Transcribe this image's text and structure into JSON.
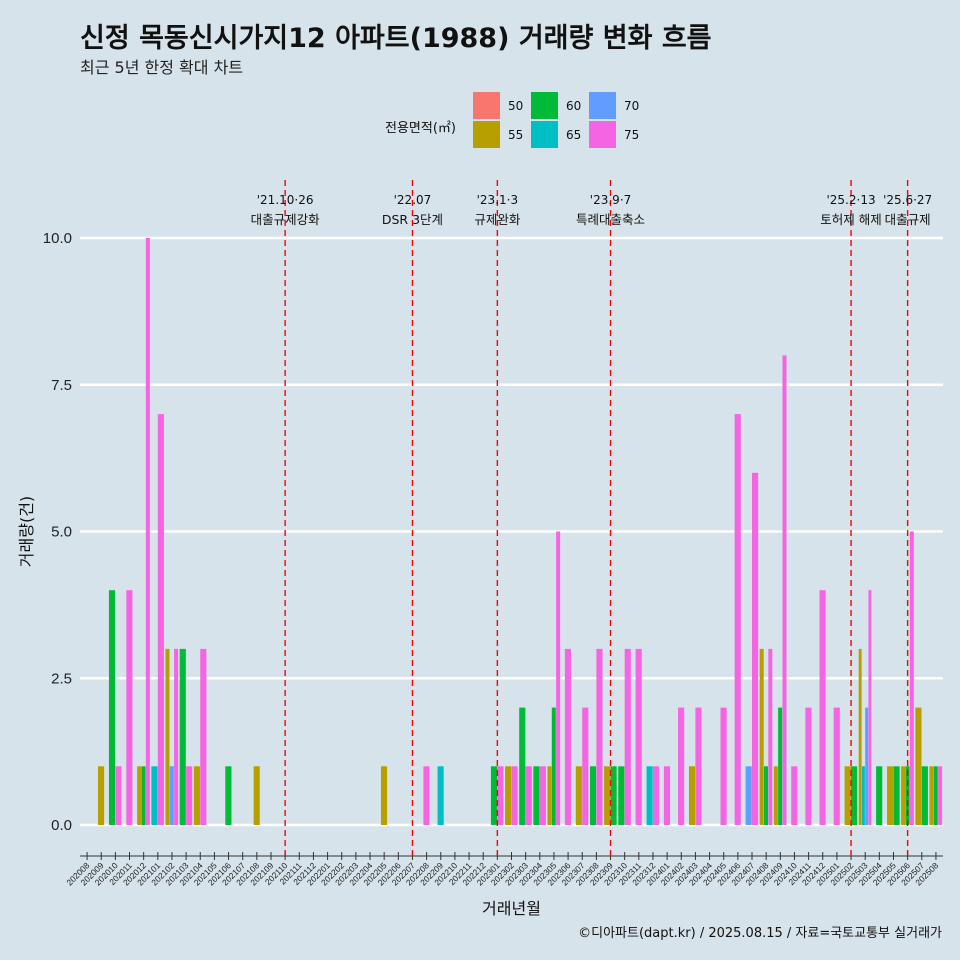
{
  "title": "신정 목동신시가지12 아파트(1988) 거래량 변화 흐름",
  "subtitle": "최근 5년 한정 확대 차트",
  "caption": "©디아파트(dapt.kr) / 2025.08.15 / 자료=국토교통부 실거래가",
  "colors": {
    "background": "#d6e3ea",
    "grid": "#ffffff",
    "event_line": "#ff0000",
    "area_50": "#f8766d",
    "area_55": "#b79f00",
    "area_60": "#00ba38",
    "area_65": "#00bfc4",
    "area_70": "#619cff",
    "area_75": "#f564e3"
  },
  "chart_data": {
    "type": "bar",
    "title": "신정 목동신시가지12 아파트(1988) 거래량 변화 흐름",
    "subtitle": "최근 5년 한정 확대 차트",
    "xlabel": "거래년월",
    "ylabel": "거래량(건)",
    "ylim": [
      0,
      10
    ],
    "yticks": [
      "0.0",
      "2.5",
      "5.0",
      "7.5",
      "10.0"
    ],
    "grid": true,
    "legend": {
      "title": "전용면적(㎡)",
      "placement": "top-center",
      "entries": [
        "50",
        "55",
        "60",
        "65",
        "70",
        "75"
      ]
    },
    "months": [
      "202008",
      "202009",
      "202010",
      "202011",
      "202012",
      "202101",
      "202102",
      "202103",
      "202104",
      "202105",
      "202106",
      "202107",
      "202108",
      "202109",
      "202110",
      "202111",
      "202112",
      "202201",
      "202202",
      "202203",
      "202204",
      "202205",
      "202206",
      "202207",
      "202208",
      "202209",
      "202210",
      "202211",
      "202212",
      "202301",
      "202302",
      "202303",
      "202304",
      "202305",
      "202306",
      "202307",
      "202308",
      "202309",
      "202310",
      "202311",
      "202312",
      "202401",
      "202402",
      "202403",
      "202404",
      "202405",
      "202406",
      "202407",
      "202408",
      "202409",
      "202410",
      "202411",
      "202412",
      "202501",
      "202502",
      "202503",
      "202504",
      "202505",
      "202506",
      "202507",
      "202508"
    ],
    "bars": [
      {
        "month": "202009",
        "series": [
          [
            "55",
            1
          ]
        ]
      },
      {
        "month": "202010",
        "series": [
          [
            "60",
            4
          ],
          [
            "75",
            1
          ]
        ]
      },
      {
        "month": "202011",
        "series": [
          [
            "75",
            4
          ]
        ]
      },
      {
        "month": "202012",
        "series": [
          [
            "55",
            1
          ],
          [
            "60",
            1
          ],
          [
            "75",
            10
          ]
        ]
      },
      {
        "month": "202101",
        "series": [
          [
            "65",
            1
          ],
          [
            "75",
            7
          ]
        ]
      },
      {
        "month": "202102",
        "series": [
          [
            "55",
            3
          ],
          [
            "70",
            1
          ],
          [
            "75",
            3
          ]
        ]
      },
      {
        "month": "202103",
        "series": [
          [
            "60",
            3
          ],
          [
            "75",
            1
          ]
        ]
      },
      {
        "month": "202104",
        "series": [
          [
            "55",
            1
          ],
          [
            "75",
            3
          ]
        ]
      },
      {
        "month": "202106",
        "series": [
          [
            "60",
            1
          ]
        ]
      },
      {
        "month": "202108",
        "series": [
          [
            "55",
            1
          ]
        ]
      },
      {
        "month": "202205",
        "series": [
          [
            "55",
            1
          ]
        ]
      },
      {
        "month": "202208",
        "series": [
          [
            "75",
            1
          ]
        ]
      },
      {
        "month": "202209",
        "series": [
          [
            "65",
            1
          ]
        ]
      },
      {
        "month": "202301",
        "series": [
          [
            "60",
            1
          ],
          [
            "75",
            1
          ]
        ]
      },
      {
        "month": "202302",
        "series": [
          [
            "55",
            1
          ],
          [
            "75",
            1
          ]
        ]
      },
      {
        "month": "202303",
        "series": [
          [
            "60",
            2
          ],
          [
            "75",
            1
          ]
        ]
      },
      {
        "month": "202304",
        "series": [
          [
            "60",
            1
          ],
          [
            "75",
            1
          ]
        ]
      },
      {
        "month": "202305",
        "series": [
          [
            "55",
            1
          ],
          [
            "60",
            2
          ],
          [
            "75",
            5
          ]
        ]
      },
      {
        "month": "202306",
        "series": [
          [
            "75",
            3
          ]
        ]
      },
      {
        "month": "202307",
        "series": [
          [
            "55",
            1
          ],
          [
            "75",
            2
          ]
        ]
      },
      {
        "month": "202308",
        "series": [
          [
            "60",
            1
          ],
          [
            "75",
            3
          ]
        ]
      },
      {
        "month": "202309",
        "series": [
          [
            "55",
            1
          ],
          [
            "60",
            1
          ]
        ]
      },
      {
        "month": "202310",
        "series": [
          [
            "60",
            1
          ],
          [
            "75",
            3
          ]
        ]
      },
      {
        "month": "202311",
        "series": [
          [
            "75",
            3
          ]
        ]
      },
      {
        "month": "202312",
        "series": [
          [
            "65",
            1
          ],
          [
            "75",
            1
          ]
        ]
      },
      {
        "month": "202401",
        "series": [
          [
            "75",
            1
          ]
        ]
      },
      {
        "month": "202402",
        "series": [
          [
            "75",
            2
          ]
        ]
      },
      {
        "month": "202403",
        "series": [
          [
            "55",
            1
          ],
          [
            "75",
            2
          ]
        ]
      },
      {
        "month": "202405",
        "series": [
          [
            "75",
            2
          ]
        ]
      },
      {
        "month": "202406",
        "series": [
          [
            "75",
            7
          ]
        ]
      },
      {
        "month": "202407",
        "series": [
          [
            "70",
            1
          ],
          [
            "75",
            6
          ]
        ]
      },
      {
        "month": "202408",
        "series": [
          [
            "55",
            3
          ],
          [
            "60",
            1
          ],
          [
            "75",
            3
          ]
        ]
      },
      {
        "month": "202409",
        "series": [
          [
            "55",
            1
          ],
          [
            "60",
            2
          ],
          [
            "75",
            8
          ]
        ]
      },
      {
        "month": "202410",
        "series": [
          [
            "75",
            1
          ]
        ]
      },
      {
        "month": "202411",
        "series": [
          [
            "75",
            2
          ]
        ]
      },
      {
        "month": "202412",
        "series": [
          [
            "75",
            4
          ]
        ]
      },
      {
        "month": "202501",
        "series": [
          [
            "75",
            2
          ]
        ]
      },
      {
        "month": "202502",
        "series": [
          [
            "55",
            1
          ],
          [
            "60",
            1
          ]
        ]
      },
      {
        "month": "202503",
        "series": [
          [
            "55",
            3
          ],
          [
            "65",
            1
          ],
          [
            "70",
            2
          ],
          [
            "75",
            4
          ]
        ]
      },
      {
        "month": "202504",
        "series": [
          [
            "60",
            1
          ]
        ]
      },
      {
        "month": "202505",
        "series": [
          [
            "55",
            1
          ],
          [
            "60",
            1
          ]
        ]
      },
      {
        "month": "202506",
        "series": [
          [
            "55",
            1
          ],
          [
            "60",
            1
          ],
          [
            "75",
            5
          ]
        ]
      },
      {
        "month": "202507",
        "series": [
          [
            "55",
            2
          ],
          [
            "60",
            1
          ]
        ]
      },
      {
        "month": "202508",
        "series": [
          [
            "55",
            1
          ],
          [
            "60",
            1
          ],
          [
            "75",
            1
          ]
        ]
      }
    ],
    "events": [
      {
        "month": "202110",
        "date": "'21.10·26",
        "label": "대출규제강화"
      },
      {
        "month": "202207",
        "date": "'22.07",
        "label": "DSR 3단계"
      },
      {
        "month": "202301",
        "date": "'23.1·3",
        "label": "규제완화"
      },
      {
        "month": "202309",
        "date": "'23.9·7",
        "label": "특례대출축소"
      },
      {
        "month": "202502",
        "date": "'25.2·13",
        "label": "토허제 해제"
      },
      {
        "month": "202506",
        "date": "'25.6·27",
        "label": "대출규제"
      }
    ]
  }
}
